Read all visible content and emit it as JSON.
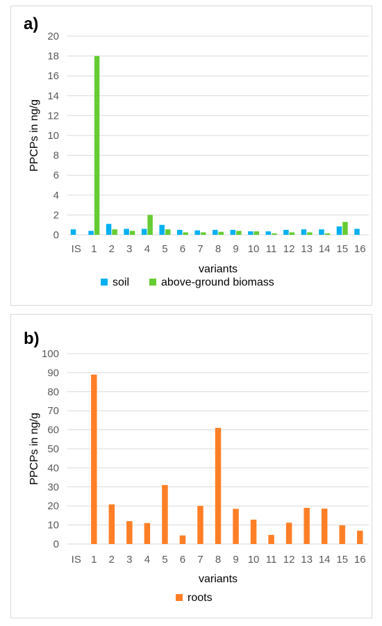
{
  "chart_data": [
    {
      "type": "bar",
      "panel_label": "a)",
      "ylabel": "PPCPs in ng/g",
      "xlabel": "variants",
      "ylim": [
        0,
        20
      ],
      "yticks": [
        0,
        2,
        4,
        6,
        8,
        10,
        12,
        14,
        16,
        18,
        20
      ],
      "grid": true,
      "legend_position": "bottom",
      "categories": [
        "IS",
        "1",
        "2",
        "3",
        "4",
        "5",
        "6",
        "7",
        "8",
        "9",
        "10",
        "11",
        "12",
        "13",
        "14",
        "15",
        "16"
      ],
      "series": [
        {
          "name": "soil",
          "color": "#00b0f0",
          "values": [
            0.55,
            0.4,
            1.1,
            0.6,
            0.6,
            1.0,
            0.5,
            0.45,
            0.5,
            0.5,
            0.35,
            0.35,
            0.5,
            0.55,
            0.55,
            0.85,
            0.6
          ]
        },
        {
          "name": "above-ground biomass",
          "color": "#66cc33",
          "values": [
            null,
            18.0,
            0.55,
            0.4,
            2.0,
            0.55,
            0.25,
            0.25,
            0.3,
            0.4,
            0.35,
            0.15,
            0.25,
            0.25,
            0.15,
            1.3,
            null
          ]
        }
      ]
    },
    {
      "type": "bar",
      "panel_label": "b)",
      "ylabel": "PPCPs in ng/g",
      "xlabel": "variants",
      "ylim": [
        0,
        100
      ],
      "yticks": [
        0,
        10,
        20,
        30,
        40,
        50,
        60,
        70,
        80,
        90,
        100
      ],
      "grid": true,
      "legend_position": "bottom",
      "categories": [
        "IS",
        "1",
        "2",
        "3",
        "4",
        "5",
        "6",
        "7",
        "8",
        "9",
        "10",
        "11",
        "12",
        "13",
        "14",
        "15",
        "16"
      ],
      "series": [
        {
          "name": "roots",
          "color": "#ff7f27",
          "values": [
            null,
            89,
            20.8,
            12,
            11,
            31,
            4.5,
            20,
            61,
            18.5,
            12.8,
            4.8,
            11.2,
            19,
            18.6,
            9.8,
            7
          ]
        }
      ]
    }
  ]
}
